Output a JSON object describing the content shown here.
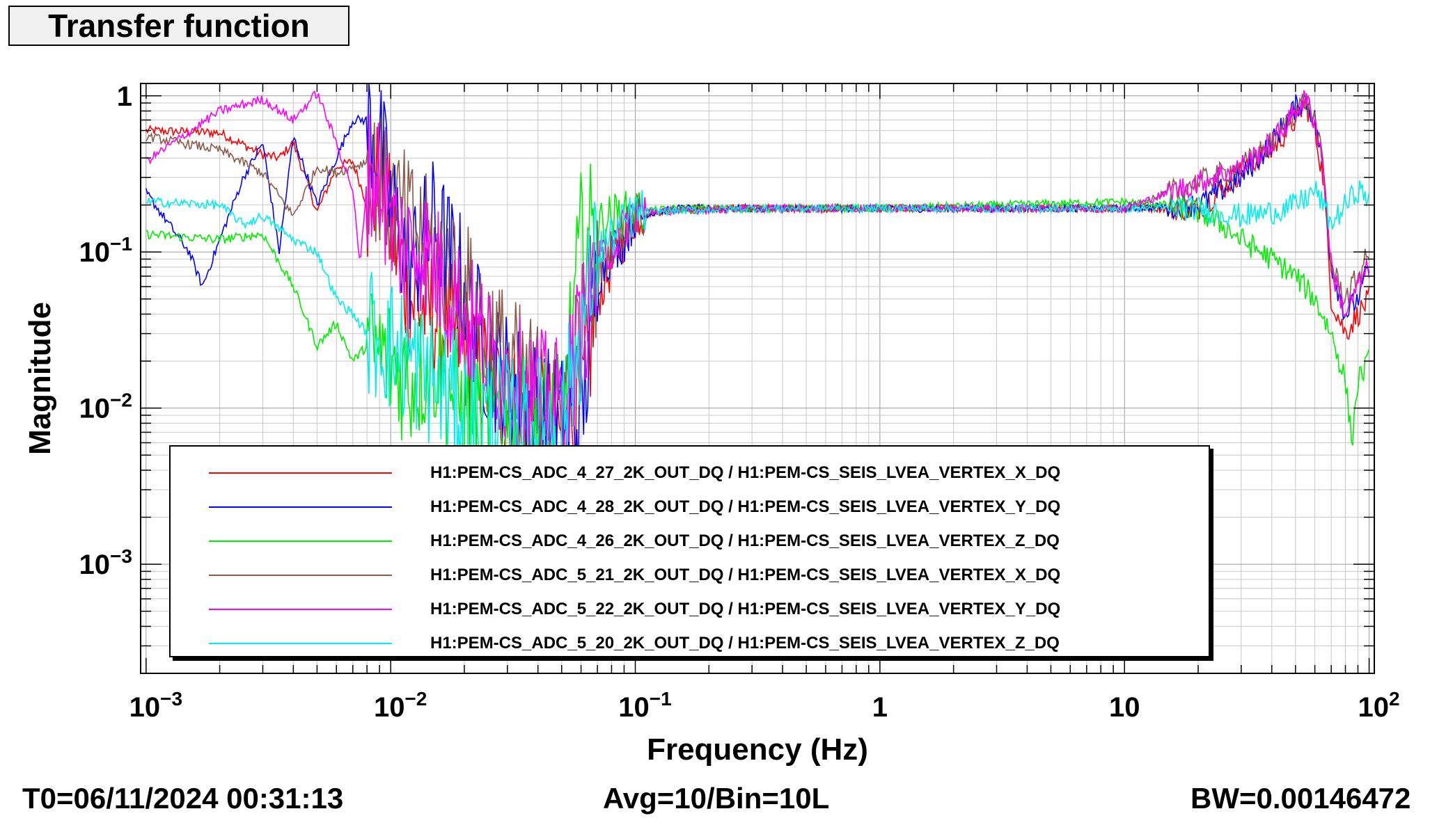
{
  "window": {
    "title": "Transfer function"
  },
  "footer": {
    "t0": "T0=06/11/2024 00:31:13",
    "avg": "Avg=10/Bin=10L",
    "bw": "BW=0.00146472"
  },
  "chart_data": {
    "type": "line",
    "title": "Transfer function",
    "xlabel": "Frequency (Hz)",
    "ylabel": "Magnitude",
    "xscale": "log",
    "yscale": "log",
    "xlim": [
      0.00095,
      105
    ],
    "ylim": [
      0.0002,
      1.2
    ],
    "grid": true,
    "legend_position": "bottom-center",
    "x_ticks": [
      {
        "value": 0.001,
        "base": "10",
        "exp": "−3"
      },
      {
        "value": 0.01,
        "base": "10",
        "exp": "−2"
      },
      {
        "value": 0.1,
        "base": "10",
        "exp": "−1"
      },
      {
        "value": 1,
        "base": "1",
        "exp": ""
      },
      {
        "value": 10,
        "base": "10",
        "exp": ""
      },
      {
        "value": 100,
        "base": "10",
        "exp": "2"
      }
    ],
    "y_ticks": [
      {
        "value": 1,
        "base": "1",
        "exp": ""
      },
      {
        "value": 0.1,
        "base": "10",
        "exp": "−1"
      },
      {
        "value": 0.01,
        "base": "10",
        "exp": "−2"
      },
      {
        "value": 0.001,
        "base": "10",
        "exp": "−3"
      }
    ],
    "series": [
      {
        "name": "H1:PEM-CS_ADC_4_27_2K_OUT_DQ / H1:PEM-CS_SEIS_LVEA_VERTEX_X_DQ",
        "color": "#ff0000",
        "x": [
          0.001,
          0.002,
          0.003,
          0.0035,
          0.004,
          0.005,
          0.006,
          0.007,
          0.008,
          0.009,
          0.01,
          0.012,
          0.015,
          0.02,
          0.025,
          0.03,
          0.04,
          0.05,
          0.06,
          0.07,
          0.08,
          0.09,
          0.1,
          0.15,
          0.3,
          0.5,
          1,
          2,
          5,
          10,
          15,
          20,
          25,
          30,
          40,
          50,
          55,
          60,
          65,
          70,
          80,
          90,
          100
        ],
        "y": [
          0.6,
          0.58,
          0.42,
          0.4,
          0.5,
          0.18,
          0.35,
          0.38,
          0.2,
          0.28,
          0.15,
          0.05,
          0.04,
          0.025,
          0.015,
          0.01,
          0.009,
          0.007,
          0.01,
          0.05,
          0.08,
          0.12,
          0.17,
          0.19,
          0.19,
          0.19,
          0.19,
          0.19,
          0.19,
          0.19,
          0.19,
          0.19,
          0.25,
          0.33,
          0.45,
          0.7,
          0.9,
          0.6,
          0.3,
          0.05,
          0.03,
          0.04,
          0.05
        ]
      },
      {
        "name": "H1:PEM-CS_ADC_4_28_2K_OUT_DQ / H1:PEM-CS_SEIS_LVEA_VERTEX_Y_DQ",
        "color": "#0000ff",
        "x": [
          0.001,
          0.0015,
          0.0017,
          0.002,
          0.0025,
          0.003,
          0.0035,
          0.004,
          0.005,
          0.006,
          0.007,
          0.008,
          0.009,
          0.01,
          0.012,
          0.015,
          0.02,
          0.025,
          0.03,
          0.04,
          0.05,
          0.06,
          0.07,
          0.08,
          0.09,
          0.1,
          0.15,
          0.3,
          1,
          5,
          10,
          20,
          30,
          40,
          50,
          55,
          60,
          65,
          70,
          80,
          90,
          100
        ],
        "y": [
          0.24,
          0.1,
          0.06,
          0.12,
          0.3,
          0.5,
          0.1,
          0.55,
          0.2,
          0.4,
          0.7,
          0.7,
          0.5,
          0.2,
          0.08,
          0.15,
          0.06,
          0.02,
          0.015,
          0.01,
          0.008,
          0.008,
          0.07,
          0.1,
          0.12,
          0.17,
          0.19,
          0.19,
          0.19,
          0.19,
          0.19,
          0.2,
          0.3,
          0.5,
          0.85,
          0.95,
          0.7,
          0.35,
          0.08,
          0.04,
          0.05,
          0.08
        ]
      },
      {
        "name": "H1:PEM-CS_ADC_4_26_2K_OUT_DQ / H1:PEM-CS_SEIS_LVEA_VERTEX_Z_DQ",
        "color": "#00ee00",
        "x": [
          0.001,
          0.002,
          0.003,
          0.004,
          0.005,
          0.006,
          0.007,
          0.008,
          0.01,
          0.012,
          0.015,
          0.02,
          0.03,
          0.05,
          0.06,
          0.07,
          0.08,
          0.1,
          0.15,
          0.3,
          1,
          3,
          10,
          15,
          20,
          25,
          30,
          40,
          50,
          60,
          70,
          80,
          85,
          90,
          100
        ],
        "y": [
          0.13,
          0.12,
          0.13,
          0.06,
          0.025,
          0.035,
          0.02,
          0.025,
          0.02,
          0.015,
          0.02,
          0.01,
          0.008,
          0.008,
          0.12,
          0.15,
          0.17,
          0.18,
          0.19,
          0.19,
          0.19,
          0.2,
          0.21,
          0.2,
          0.18,
          0.15,
          0.12,
          0.09,
          0.07,
          0.05,
          0.03,
          0.015,
          0.006,
          0.015,
          0.02
        ]
      },
      {
        "name": "H1:PEM-CS_ADC_5_21_2K_OUT_DQ / H1:PEM-CS_SEIS_LVEA_VERTEX_X_DQ",
        "color": "#8b5a4a",
        "x": [
          0.001,
          0.002,
          0.003,
          0.004,
          0.005,
          0.006,
          0.007,
          0.008,
          0.009,
          0.01,
          0.012,
          0.015,
          0.02,
          0.03,
          0.05,
          0.07,
          0.1,
          0.3,
          1,
          10,
          30,
          40,
          50,
          55,
          60,
          65,
          70,
          80,
          90,
          100
        ],
        "y": [
          0.55,
          0.45,
          0.32,
          0.17,
          0.35,
          0.32,
          0.35,
          0.38,
          0.28,
          0.2,
          0.15,
          0.1,
          0.06,
          0.02,
          0.01,
          0.08,
          0.18,
          0.19,
          0.19,
          0.19,
          0.35,
          0.5,
          0.8,
          0.95,
          0.7,
          0.35,
          0.08,
          0.05,
          0.07,
          0.1
        ]
      },
      {
        "name": "H1:PEM-CS_ADC_5_22_2K_OUT_DQ / H1:PEM-CS_SEIS_LVEA_VERTEX_Y_DQ",
        "color": "#ff00ff",
        "x": [
          0.001,
          0.002,
          0.003,
          0.004,
          0.005,
          0.006,
          0.007,
          0.0075,
          0.008,
          0.009,
          0.01,
          0.012,
          0.013,
          0.015,
          0.02,
          0.03,
          0.05,
          0.07,
          0.1,
          0.3,
          1,
          10,
          30,
          40,
          50,
          55,
          60,
          65,
          70,
          80,
          90,
          100
        ],
        "y": [
          0.38,
          0.8,
          0.95,
          0.7,
          1.05,
          0.5,
          0.25,
          0.08,
          0.3,
          0.3,
          0.15,
          0.1,
          0.12,
          0.08,
          0.04,
          0.015,
          0.01,
          0.08,
          0.18,
          0.19,
          0.19,
          0.19,
          0.35,
          0.5,
          0.8,
          0.95,
          0.7,
          0.35,
          0.08,
          0.04,
          0.06,
          0.08
        ]
      },
      {
        "name": "H1:PEM-CS_ADC_5_20_2K_OUT_DQ / H1:PEM-CS_SEIS_LVEA_VERTEX_Z_DQ",
        "color": "#00eeee",
        "x": [
          0.001,
          0.002,
          0.0025,
          0.003,
          0.004,
          0.005,
          0.006,
          0.007,
          0.008,
          0.009,
          0.01,
          0.012,
          0.015,
          0.02,
          0.03,
          0.05,
          0.07,
          0.1,
          0.3,
          1,
          10,
          20,
          30,
          40,
          50,
          55,
          60,
          65,
          70,
          80,
          90,
          100
        ],
        "y": [
          0.21,
          0.2,
          0.15,
          0.17,
          0.12,
          0.1,
          0.05,
          0.04,
          0.03,
          0.03,
          0.025,
          0.02,
          0.015,
          0.01,
          0.008,
          0.008,
          0.1,
          0.18,
          0.19,
          0.19,
          0.19,
          0.19,
          0.17,
          0.18,
          0.2,
          0.22,
          0.25,
          0.2,
          0.15,
          0.2,
          0.25,
          0.22
        ]
      }
    ]
  }
}
